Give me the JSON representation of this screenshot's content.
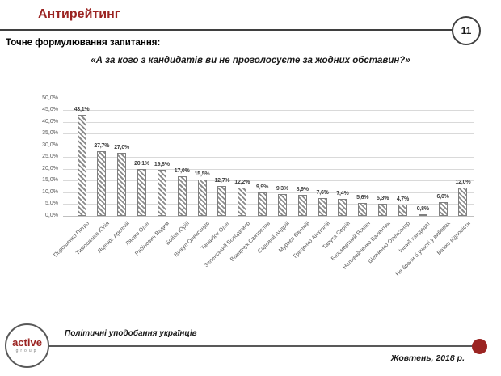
{
  "header": {
    "title": "Антирейтинг",
    "page_number": "11",
    "question_label": "Точне формулювання запитання:",
    "question_text": "«А за кого з кандидатів ви не проголосуєте за жодних обставин?»"
  },
  "chart_data": {
    "type": "bar",
    "title": "",
    "xlabel": "",
    "ylabel": "",
    "ylim": [
      0,
      50
    ],
    "ytick_step": 5,
    "ytick_labels": [
      "0,0%",
      "5,0%",
      "10,0%",
      "15,0%",
      "20,0%",
      "25,0%",
      "30,0%",
      "35,0%",
      "40,0%",
      "45,0%",
      "50,0%"
    ],
    "grid": true,
    "legend": false,
    "bar_style": "diagonal-hatch",
    "categories": [
      "Порошенко Петро",
      "Тимошенко Юлія",
      "Яценюк Арсеній",
      "Ляшко Олег",
      "Рабінович Вадим",
      "Бойко Юрій",
      "Вілкул Олександр",
      "Тягнибок Олег",
      "Зеленський Володимир",
      "Вакарчук Святослав",
      "Садовий Андрій",
      "Мураєв Євгеній",
      "Гриценко Анатолій",
      "Тарута Сергій",
      "Безсмертний Роман",
      "Наливайченко Валентин",
      "Шевченко Олександр",
      "Інший кандидат",
      "Не брали б участі у виборах",
      "Важко відповісти"
    ],
    "values": [
      43.1,
      27.7,
      27.0,
      20.1,
      19.8,
      17.0,
      15.5,
      12.7,
      12.2,
      9.9,
      9.3,
      8.9,
      7.6,
      7.4,
      5.6,
      5.3,
      4.7,
      0.8,
      6.0,
      12.0
    ],
    "value_labels": [
      "43,1%",
      "27,7%",
      "27,0%",
      "20,1%",
      "19,8%",
      "17,0%",
      "15,5%",
      "12,7%",
      "12,2%",
      "9,9%",
      "9,3%",
      "8,9%",
      "7,6%",
      "7,4%",
      "5,6%",
      "5,3%",
      "4,7%",
      "0,8%",
      "6,0%",
      "12,0%"
    ]
  },
  "footer": {
    "logo_line1": "active",
    "logo_line2": "group",
    "caption": "Політичні уподобання українців",
    "date": "Жовтень, 2018 р."
  },
  "colors": {
    "accent_red": "#9b2422",
    "rule_dark": "#3f3f3f",
    "axis_text": "#595959",
    "gridline": "#d9d9d9",
    "bar_stroke": "#7f7f7f"
  }
}
